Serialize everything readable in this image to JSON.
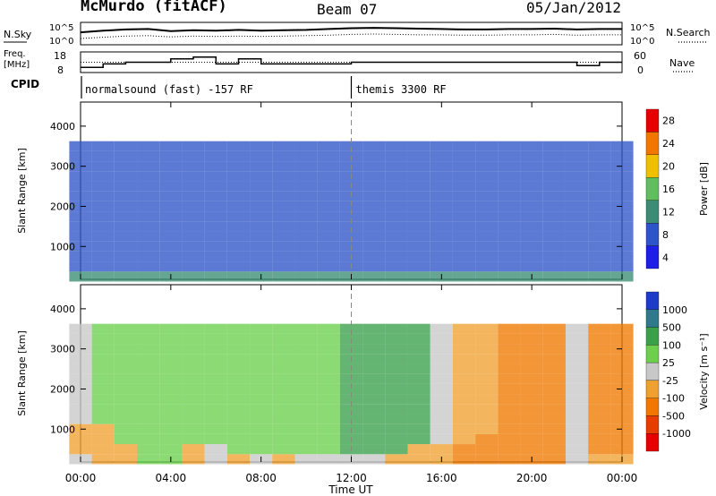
{
  "chart_data": [
    {
      "type": "line",
      "panel": "noise",
      "title": "McMurdo (fitACF)",
      "subtitle": "Beam 07",
      "date": "05/Jan/2012",
      "left_labels": [
        "N.Sky"
      ],
      "right_labels": [
        "N.Search"
      ],
      "left_ticks": [
        "10^5",
        "10^0"
      ],
      "right_ticks": [
        "10^5",
        "10^0"
      ],
      "series": [
        {
          "name": "N.Sky",
          "x": [
            0,
            1,
            2,
            3,
            4,
            5,
            6,
            7,
            8,
            9,
            10,
            11,
            12,
            13,
            14,
            15,
            16,
            17,
            18,
            19,
            20,
            21,
            22,
            23,
            24
          ],
          "y": [
            2.8,
            3.2,
            3.5,
            3.6,
            3.1,
            3.3,
            3.2,
            3.4,
            3.2,
            3.3,
            3.4,
            3.6,
            3.8,
            3.9,
            3.8,
            3.7,
            3.6,
            3.5,
            3.5,
            3.6,
            3.6,
            3.7,
            3.5,
            3.6,
            3.6
          ]
        },
        {
          "name": "N.Search",
          "x": [
            0,
            1,
            2,
            3,
            4,
            5,
            6,
            7,
            8,
            9,
            10,
            11,
            12,
            13,
            14,
            15,
            16,
            17,
            18,
            19,
            20,
            21,
            22,
            23,
            24
          ],
          "y": [
            1.3,
            1.6,
            1.9,
            2.0,
            1.7,
            1.9,
            1.8,
            1.9,
            1.8,
            1.9,
            2.0,
            2.1,
            2.3,
            2.4,
            2.3,
            2.2,
            2.2,
            2.1,
            2.1,
            2.2,
            2.2,
            2.3,
            2.1,
            2.2,
            2.2
          ]
        }
      ]
    },
    {
      "type": "line",
      "panel": "frequency",
      "left_label_lines": [
        "Freq.",
        "[MHz]"
      ],
      "right_labels": [
        "Nave"
      ],
      "left_ticks": [
        "18",
        "8"
      ],
      "right_ticks": [
        "60",
        "0"
      ],
      "series": [
        {
          "name": "Freq.",
          "x": [
            0,
            1,
            2,
            3,
            4,
            5,
            6,
            7,
            8,
            9,
            10,
            11,
            12,
            13,
            14,
            15,
            16,
            17,
            18,
            19,
            20,
            21,
            22,
            23,
            24
          ],
          "y": [
            10,
            12,
            13,
            13,
            15,
            16,
            12,
            15,
            12,
            12,
            12,
            12,
            13,
            13,
            13,
            13,
            13,
            13,
            13,
            13,
            13,
            13,
            11,
            13,
            13
          ]
        },
        {
          "name": "Nave",
          "x": [
            0,
            24
          ],
          "y": [
            13,
            13
          ]
        }
      ]
    },
    {
      "type": "table",
      "panel": "cpid",
      "label": "CPID",
      "segments": [
        {
          "start": 0,
          "end": 12,
          "label": "normalsound (fast) -157 RF"
        },
        {
          "start": 12,
          "end": 24,
          "label": "themis 3300 RF"
        }
      ]
    },
    {
      "type": "heatmap",
      "panel": "power",
      "ylabel": "Slant Range [km]",
      "yticks": [
        1000,
        2000,
        3000,
        4000
      ],
      "ylim": [
        180,
        4600
      ],
      "xlim": [
        0,
        24
      ],
      "colorbar_label": "Power [dB]",
      "colorbar_ticks": [
        4,
        8,
        12,
        16,
        20,
        24,
        28
      ],
      "colors": [
        "#1e1ee6",
        "#2e55c8",
        "#3a8d74",
        "#5fbf5f",
        "#f0c000",
        "#f07800",
        "#e60000"
      ],
      "x": [
        0,
        1,
        2,
        3,
        4,
        5,
        6,
        7,
        8,
        9,
        10,
        11,
        12,
        13,
        14,
        15,
        16,
        17,
        18,
        19,
        20,
        21,
        22,
        23,
        24
      ],
      "y": [
        250,
        500,
        750,
        1000,
        1250,
        1500,
        1750,
        2000,
        2250,
        2500,
        2750,
        3000,
        3250,
        3500
      ],
      "z": [
        [
          10,
          10,
          10,
          10,
          10,
          10,
          10,
          10,
          10,
          10,
          10,
          10,
          10,
          10,
          10,
          10,
          10,
          10,
          10,
          10,
          10,
          10,
          10,
          10,
          10
        ],
        [
          8,
          8,
          8,
          8,
          8,
          8,
          8,
          8,
          8,
          8,
          8,
          8,
          8,
          8,
          8,
          8,
          8,
          8,
          8,
          8,
          8,
          8,
          8,
          8,
          8
        ],
        [
          8,
          8,
          8,
          8,
          8,
          8,
          8,
          8,
          8,
          8,
          8,
          8,
          8,
          8,
          8,
          8,
          8,
          8,
          8,
          8,
          8,
          8,
          8,
          8,
          8
        ],
        [
          8,
          8,
          8,
          8,
          8,
          8,
          8,
          8,
          8,
          8,
          8,
          8,
          8,
          8,
          8,
          8,
          8,
          8,
          8,
          8,
          8,
          8,
          8,
          8,
          8
        ],
        [
          8,
          8,
          8,
          8,
          8,
          8,
          8,
          8,
          8,
          8,
          8,
          8,
          8,
          8,
          8,
          8,
          8,
          8,
          8,
          8,
          8,
          8,
          8,
          8,
          8
        ],
        [
          8,
          8,
          8,
          8,
          8,
          8,
          8,
          8,
          8,
          8,
          8,
          8,
          8,
          8,
          8,
          8,
          8,
          8,
          8,
          8,
          8,
          8,
          8,
          8,
          8
        ],
        [
          8,
          8,
          8,
          8,
          8,
          8,
          8,
          8,
          8,
          8,
          8,
          8,
          8,
          8,
          8,
          8,
          8,
          8,
          8,
          8,
          8,
          8,
          8,
          8,
          8
        ],
        [
          8,
          8,
          8,
          8,
          8,
          8,
          8,
          8,
          8,
          8,
          8,
          8,
          8,
          8,
          8,
          8,
          8,
          8,
          8,
          8,
          8,
          8,
          8,
          8,
          8
        ],
        [
          8,
          8,
          8,
          8,
          8,
          8,
          8,
          8,
          8,
          8,
          8,
          8,
          8,
          8,
          8,
          8,
          8,
          8,
          8,
          8,
          8,
          8,
          8,
          8,
          8
        ],
        [
          8,
          8,
          8,
          8,
          8,
          8,
          8,
          8,
          8,
          8,
          8,
          8,
          8,
          8,
          8,
          8,
          8,
          8,
          8,
          8,
          8,
          8,
          8,
          8,
          8
        ],
        [
          8,
          8,
          8,
          8,
          8,
          8,
          8,
          8,
          8,
          8,
          8,
          8,
          8,
          8,
          8,
          8,
          8,
          8,
          8,
          8,
          8,
          8,
          8,
          8,
          8
        ],
        [
          8,
          8,
          8,
          8,
          8,
          8,
          8,
          8,
          8,
          8,
          8,
          8,
          8,
          8,
          8,
          8,
          8,
          8,
          8,
          8,
          8,
          8,
          8,
          8,
          8
        ],
        [
          8,
          8,
          8,
          8,
          8,
          8,
          8,
          8,
          8,
          8,
          8,
          8,
          8,
          8,
          8,
          8,
          8,
          8,
          8,
          8,
          8,
          8,
          8,
          8,
          8
        ],
        [
          8,
          8,
          8,
          8,
          8,
          8,
          8,
          8,
          8,
          8,
          8,
          8,
          8,
          8,
          8,
          8,
          8,
          8,
          8,
          8,
          8,
          8,
          8,
          8,
          8
        ]
      ]
    },
    {
      "type": "heatmap",
      "panel": "velocity",
      "ylabel": "Slant Range [km]",
      "yticks": [
        1000,
        2000,
        3000,
        4000
      ],
      "ylim": [
        180,
        4600
      ],
      "xlim": [
        0,
        24
      ],
      "xticks": [
        "00:00",
        "04:00",
        "08:00",
        "12:00",
        "16:00",
        "20:00",
        "00:00"
      ],
      "xlabel": "Time UT",
      "colorbar_label": "Velocity [m s⁻¹]",
      "colorbar_ticks": [
        1000,
        500,
        100,
        25,
        -25,
        -100,
        -500,
        -1000
      ],
      "colors": [
        "#1e3cc8",
        "#2e7a8c",
        "#3aa04a",
        "#6cd04c",
        "#c8c8c8",
        "#f0a030",
        "#f07800",
        "#e63c00",
        "#e60000"
      ],
      "x": [
        0,
        1,
        2,
        3,
        4,
        5,
        6,
        7,
        8,
        9,
        10,
        11,
        12,
        13,
        14,
        15,
        16,
        17,
        18,
        19,
        20,
        21,
        22,
        23,
        24
      ],
      "y": [
        250,
        500,
        750,
        1000,
        1250,
        1500,
        1750,
        2000,
        2250,
        2500,
        2750,
        3000,
        3250,
        3500
      ],
      "z": [
        [
          0,
          -50,
          -80,
          40,
          40,
          -50,
          0,
          -50,
          0,
          -50,
          0,
          0,
          0,
          0,
          -100,
          -100,
          -100,
          -150,
          -300,
          -300,
          -300,
          -300,
          0,
          -50,
          -50
        ],
        [
          -50,
          -50,
          -80,
          40,
          40,
          -50,
          0,
          80,
          80,
          80,
          80,
          80,
          120,
          100,
          100,
          -50,
          -50,
          -150,
          -300,
          -300,
          -300,
          -300,
          0,
          -150,
          -150
        ],
        [
          -50,
          -50,
          50,
          50,
          50,
          80,
          80,
          80,
          80,
          80,
          80,
          80,
          120,
          150,
          150,
          100,
          0,
          -50,
          -300,
          -300,
          -300,
          -300,
          0,
          -200,
          -200
        ],
        [
          -50,
          -50,
          50,
          50,
          50,
          80,
          80,
          80,
          80,
          80,
          80,
          80,
          120,
          150,
          150,
          100,
          0,
          -50,
          -50,
          -150,
          -150,
          -200,
          0,
          -200,
          -200
        ],
        [
          0,
          50,
          50,
          80,
          80,
          80,
          80,
          80,
          80,
          80,
          80,
          80,
          120,
          150,
          150,
          100,
          0,
          -50,
          -50,
          -150,
          -150,
          -200,
          0,
          -200,
          -200
        ],
        [
          0,
          50,
          50,
          80,
          80,
          80,
          80,
          80,
          80,
          80,
          80,
          80,
          120,
          150,
          150,
          100,
          0,
          -50,
          -50,
          -150,
          -150,
          -200,
          0,
          -200,
          -200
        ],
        [
          0,
          50,
          50,
          80,
          80,
          80,
          80,
          80,
          80,
          80,
          80,
          80,
          120,
          150,
          150,
          100,
          0,
          -50,
          -50,
          -150,
          -150,
          -200,
          0,
          -200,
          -200
        ],
        [
          0,
          50,
          50,
          80,
          80,
          80,
          80,
          80,
          80,
          80,
          80,
          80,
          120,
          150,
          150,
          100,
          0,
          -50,
          -50,
          -150,
          -150,
          -200,
          0,
          -200,
          -200
        ],
        [
          0,
          50,
          50,
          80,
          80,
          80,
          80,
          80,
          80,
          80,
          80,
          80,
          120,
          150,
          150,
          100,
          0,
          -50,
          -50,
          -150,
          -150,
          -200,
          0,
          -200,
          -200
        ],
        [
          0,
          50,
          50,
          80,
          80,
          80,
          80,
          80,
          80,
          80,
          80,
          80,
          120,
          150,
          150,
          100,
          0,
          -50,
          -50,
          -150,
          -150,
          -200,
          0,
          -200,
          -200
        ],
        [
          0,
          50,
          50,
          80,
          80,
          80,
          80,
          80,
          80,
          80,
          80,
          80,
          120,
          150,
          150,
          100,
          0,
          -50,
          -50,
          -150,
          -150,
          -200,
          0,
          -200,
          -200
        ],
        [
          0,
          50,
          50,
          80,
          80,
          80,
          80,
          80,
          80,
          80,
          80,
          80,
          120,
          150,
          150,
          100,
          0,
          -50,
          -50,
          -150,
          -150,
          -200,
          0,
          -200,
          -200
        ],
        [
          0,
          50,
          50,
          80,
          80,
          80,
          80,
          80,
          80,
          80,
          80,
          80,
          120,
          150,
          150,
          100,
          0,
          -50,
          -50,
          -150,
          -150,
          -200,
          0,
          -200,
          -200
        ],
        [
          0,
          50,
          50,
          80,
          80,
          80,
          80,
          80,
          80,
          80,
          80,
          80,
          120,
          150,
          150,
          100,
          0,
          -50,
          -50,
          -150,
          -150,
          -200,
          0,
          -200,
          -200
        ]
      ]
    }
  ]
}
